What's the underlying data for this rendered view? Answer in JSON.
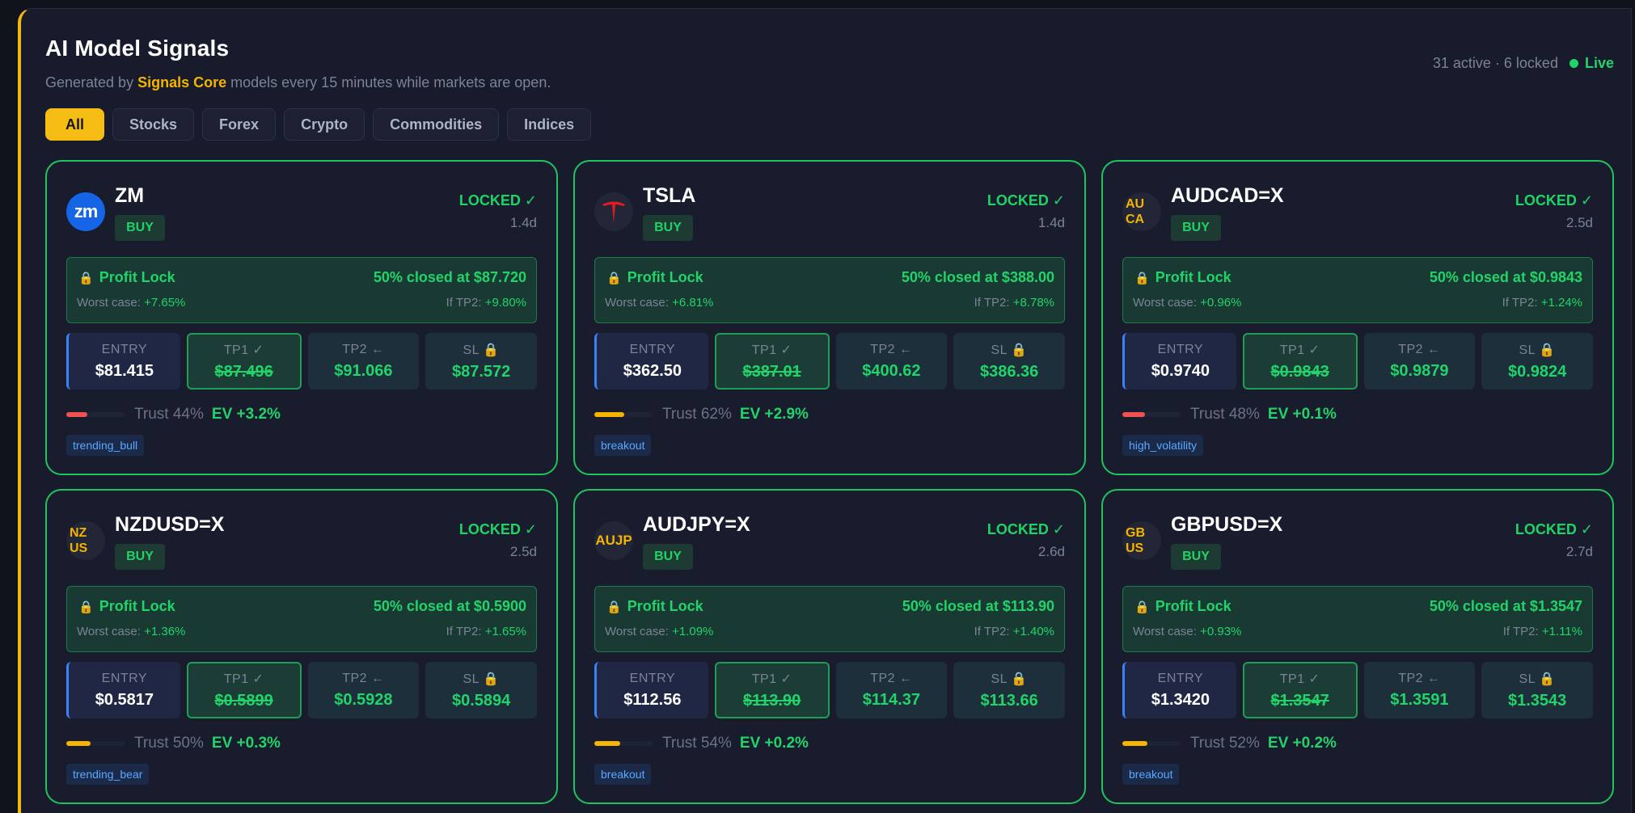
{
  "header": {
    "title": "AI Model Signals",
    "subtitle_prefix": "Generated by",
    "brand": "Signals Core",
    "subtitle_suffix": "models every 15 minutes while markets are open.",
    "counts": "31 active · 6 locked",
    "live_label": "Live"
  },
  "tabs": [
    {
      "label": "All",
      "active": true
    },
    {
      "label": "Stocks",
      "active": false
    },
    {
      "label": "Forex",
      "active": false
    },
    {
      "label": "Crypto",
      "active": false
    },
    {
      "label": "Commodities",
      "active": false
    },
    {
      "label": "Indices",
      "active": false
    }
  ],
  "level_labels": {
    "entry": "ENTRY",
    "tp1": "TP1 ✓",
    "tp2": "TP2 ←",
    "sl": "SL 🔒"
  },
  "profit_lock_label": "Profit Lock",
  "worst_label": "Worst case:",
  "tp2_label": "If TP2:",
  "trust_label_prefix": "Trust",
  "ev_prefix": "EV",
  "colors": {
    "accent": "#f5bd14",
    "green": "#22d36a",
    "red": "#f05252",
    "yellow": "#f5b400"
  },
  "cards": [
    {
      "symbol": "ZM",
      "avatar": "zm",
      "avatar_icon": "zoom-logo-icon",
      "side": "BUY",
      "status": "LOCKED ✓",
      "age": "1.4d",
      "closed": "50% closed at $87.720",
      "worst": "+7.65%",
      "tp2pct": "+9.80%",
      "entry": "$81.415",
      "tp1": "$87.496",
      "tp2": "$91.066",
      "sl": "$87.572",
      "trust": "Trust 44%",
      "trust_value": 44,
      "trust_color": "#f05252",
      "ev": "EV +3.2%",
      "tag": "trending_bull"
    },
    {
      "symbol": "TSLA",
      "avatar": "tsla",
      "avatar_icon": "tesla-logo-icon",
      "side": "BUY",
      "status": "LOCKED ✓",
      "age": "1.4d",
      "closed": "50% closed at $388.00",
      "worst": "+6.81%",
      "tp2pct": "+8.78%",
      "entry": "$362.50",
      "tp1": "$387.01",
      "tp2": "$400.62",
      "sl": "$386.36",
      "trust": "Trust 62%",
      "trust_value": 62,
      "trust_color": "#f5b400",
      "ev": "EV +2.9%",
      "tag": "breakout"
    },
    {
      "symbol": "AUDCAD=X",
      "avatar": "AU\nCA",
      "avatar_icon": "currency-pair-icon",
      "side": "BUY",
      "status": "LOCKED ✓",
      "age": "2.5d",
      "closed": "50% closed at $0.9843",
      "worst": "+0.96%",
      "tp2pct": "+1.24%",
      "entry": "$0.9740",
      "tp1": "$0.9843",
      "tp2": "$0.9879",
      "sl": "$0.9824",
      "trust": "Trust 48%",
      "trust_value": 48,
      "trust_color": "#f05252",
      "ev": "EV +0.1%",
      "tag": "high_volatility"
    },
    {
      "symbol": "NZDUSD=X",
      "avatar": "NZ\nUS",
      "avatar_icon": "currency-pair-icon",
      "side": "BUY",
      "status": "LOCKED ✓",
      "age": "2.5d",
      "closed": "50% closed at $0.5900",
      "worst": "+1.36%",
      "tp2pct": "+1.65%",
      "entry": "$0.5817",
      "tp1": "$0.5899",
      "tp2": "$0.5928",
      "sl": "$0.5894",
      "trust": "Trust 50%",
      "trust_value": 50,
      "trust_color": "#f5b400",
      "ev": "EV +0.3%",
      "tag": "trending_bear"
    },
    {
      "symbol": "AUDJPY=X",
      "avatar": "AUJP",
      "avatar_icon": "currency-pair-icon",
      "side": "BUY",
      "status": "LOCKED ✓",
      "age": "2.6d",
      "closed": "50% closed at $113.90",
      "worst": "+1.09%",
      "tp2pct": "+1.40%",
      "entry": "$112.56",
      "tp1": "$113.90",
      "tp2": "$114.37",
      "sl": "$113.66",
      "trust": "Trust 54%",
      "trust_value": 54,
      "trust_color": "#f5b400",
      "ev": "EV +0.2%",
      "tag": "breakout"
    },
    {
      "symbol": "GBPUSD=X",
      "avatar": "GB\nUS",
      "avatar_icon": "currency-pair-icon",
      "side": "BUY",
      "status": "LOCKED ✓",
      "age": "2.7d",
      "closed": "50% closed at $1.3547",
      "worst": "+0.93%",
      "tp2pct": "+1.11%",
      "entry": "$1.3420",
      "tp1": "$1.3547",
      "tp2": "$1.3591",
      "sl": "$1.3543",
      "trust": "Trust 52%",
      "trust_value": 52,
      "trust_color": "#f5b400",
      "ev": "EV +0.2%",
      "tag": "breakout"
    }
  ]
}
